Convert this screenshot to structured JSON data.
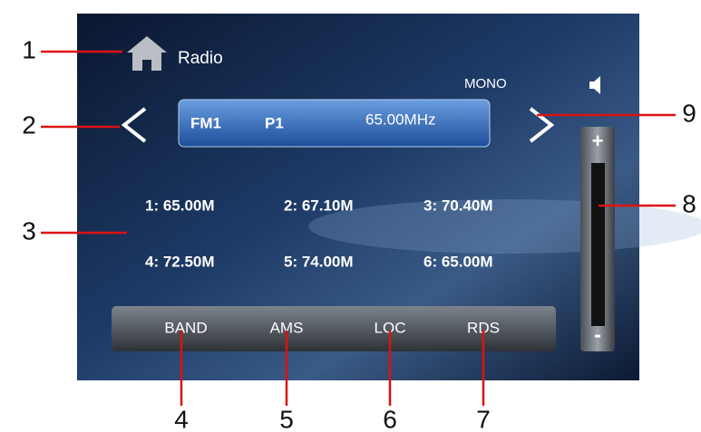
{
  "screen": {
    "title": "Radio",
    "mode": "MONO",
    "display": {
      "band": "FM1",
      "preset": "P1",
      "frequency": "65.00MHz"
    },
    "presets": [
      "1: 65.00M",
      "2: 67.10M",
      "3: 70.40M",
      "4: 72.50M",
      "5: 74.00M",
      "6: 65.00M"
    ],
    "buttons": [
      "BAND",
      "AMS",
      "LOC",
      "RDS"
    ],
    "volume": {
      "plus": "+",
      "minus": "-"
    }
  },
  "callouts": [
    "1",
    "2",
    "3",
    "4",
    "5",
    "6",
    "7",
    "8",
    "9"
  ]
}
